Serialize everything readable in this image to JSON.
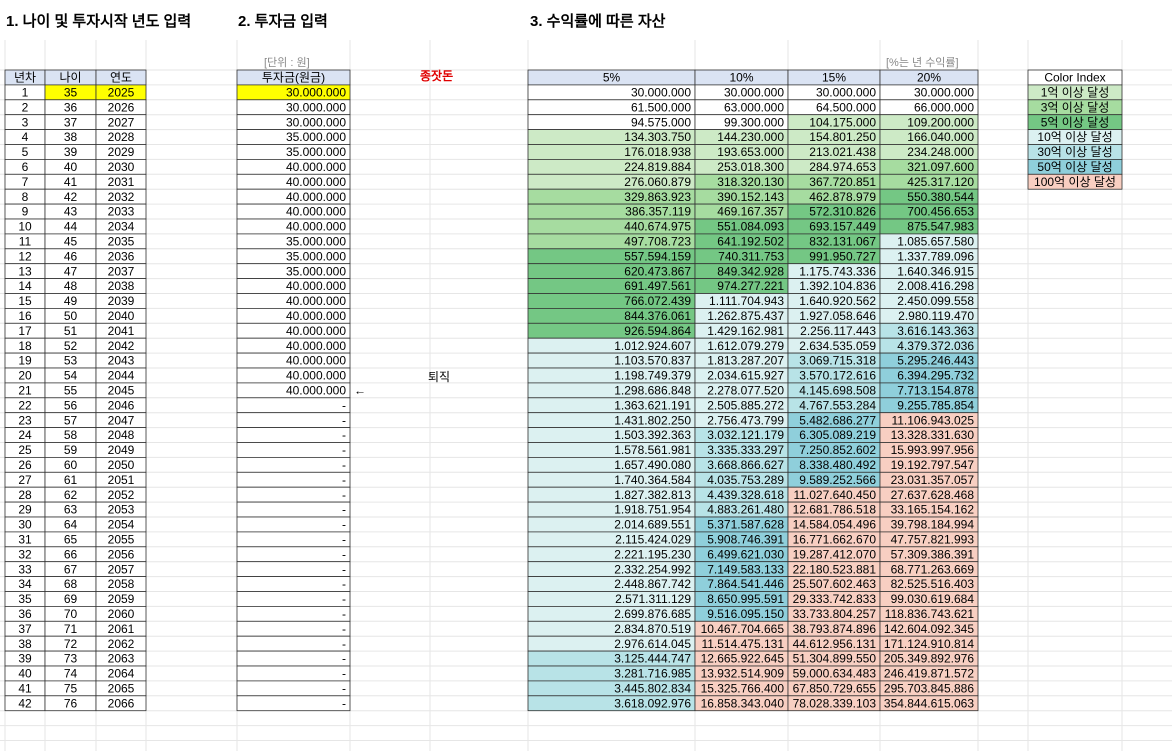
{
  "titles": {
    "section1": "1. 나이 및 투자시작 년도 입력",
    "section2": "2. 투자금 입력",
    "section3": "3. 수익률에 따른 자산"
  },
  "notes": {
    "unit": "[단위 : 원]",
    "rate": "[%는 년 수익률]",
    "seed": "종잣돈",
    "retire": "퇴직",
    "arrow": "←"
  },
  "age_table": {
    "headers": [
      "년차",
      "나이",
      "연도"
    ],
    "rows": [
      [
        1,
        35,
        2025
      ],
      [
        2,
        36,
        2026
      ],
      [
        3,
        37,
        2027
      ],
      [
        4,
        38,
        2028
      ],
      [
        5,
        39,
        2029
      ],
      [
        6,
        40,
        2030
      ],
      [
        7,
        41,
        2031
      ],
      [
        8,
        42,
        2032
      ],
      [
        9,
        43,
        2033
      ],
      [
        10,
        44,
        2034
      ],
      [
        11,
        45,
        2035
      ],
      [
        12,
        46,
        2036
      ],
      [
        13,
        47,
        2037
      ],
      [
        14,
        48,
        2038
      ],
      [
        15,
        49,
        2039
      ],
      [
        16,
        50,
        2040
      ],
      [
        17,
        51,
        2041
      ],
      [
        18,
        52,
        2042
      ],
      [
        19,
        53,
        2043
      ],
      [
        20,
        54,
        2044
      ],
      [
        21,
        55,
        2045
      ],
      [
        22,
        56,
        2046
      ],
      [
        23,
        57,
        2047
      ],
      [
        24,
        58,
        2048
      ],
      [
        25,
        59,
        2049
      ],
      [
        26,
        60,
        2050
      ],
      [
        27,
        61,
        2051
      ],
      [
        28,
        62,
        2052
      ],
      [
        29,
        63,
        2053
      ],
      [
        30,
        64,
        2054
      ],
      [
        31,
        65,
        2055
      ],
      [
        32,
        66,
        2056
      ],
      [
        33,
        67,
        2057
      ],
      [
        34,
        68,
        2058
      ],
      [
        35,
        69,
        2059
      ],
      [
        36,
        70,
        2060
      ],
      [
        37,
        71,
        2061
      ],
      [
        38,
        72,
        2062
      ],
      [
        39,
        73,
        2063
      ],
      [
        40,
        74,
        2064
      ],
      [
        41,
        75,
        2065
      ],
      [
        42,
        76,
        2066
      ]
    ]
  },
  "investment_table": {
    "header": "투자금(원금)",
    "rows": [
      "30.000.000",
      "30.000.000",
      "30.000.000",
      "35.000.000",
      "35.000.000",
      "40.000.000",
      "40.000.000",
      "40.000.000",
      "40.000.000",
      "40.000.000",
      "35.000.000",
      "35.000.000",
      "35.000.000",
      "40.000.000",
      "40.000.000",
      "40.000.000",
      "40.000.000",
      "40.000.000",
      "40.000.000",
      "40.000.000",
      "40.000.000",
      "-",
      "-",
      "-",
      "-",
      "-",
      "-",
      "-",
      "-",
      "-",
      "-",
      "-",
      "-",
      "-",
      "-",
      "-",
      "-",
      "-",
      "-",
      "-",
      "-",
      "-"
    ]
  },
  "asset_table": {
    "headers": [
      "5%",
      "10%",
      "15%",
      "20%"
    ],
    "rows": [
      [
        "30.000.000",
        "30.000.000",
        "30.000.000",
        "30.000.000"
      ],
      [
        "61.500.000",
        "63.000.000",
        "64.500.000",
        "66.000.000"
      ],
      [
        "94.575.000",
        "99.300.000",
        "104.175.000",
        "109.200.000"
      ],
      [
        "134.303.750",
        "144.230.000",
        "154.801.250",
        "166.040.000"
      ],
      [
        "176.018.938",
        "193.653.000",
        "213.021.438",
        "234.248.000"
      ],
      [
        "224.819.884",
        "253.018.300",
        "284.974.653",
        "321.097.600"
      ],
      [
        "276.060.879",
        "318.320.130",
        "367.720.851",
        "425.317.120"
      ],
      [
        "329.863.923",
        "390.152.143",
        "462.878.979",
        "550.380.544"
      ],
      [
        "386.357.119",
        "469.167.357",
        "572.310.826",
        "700.456.653"
      ],
      [
        "440.674.975",
        "551.084.093",
        "693.157.449",
        "875.547.983"
      ],
      [
        "497.708.723",
        "641.192.502",
        "832.131.067",
        "1.085.657.580"
      ],
      [
        "557.594.159",
        "740.311.753",
        "991.950.727",
        "1.337.789.096"
      ],
      [
        "620.473.867",
        "849.342.928",
        "1.175.743.336",
        "1.640.346.915"
      ],
      [
        "691.497.561",
        "974.277.221",
        "1.392.104.836",
        "2.008.416.298"
      ],
      [
        "766.072.439",
        "1.111.704.943",
        "1.640.920.562",
        "2.450.099.558"
      ],
      [
        "844.376.061",
        "1.262.875.437",
        "1.927.058.646",
        "2.980.119.470"
      ],
      [
        "926.594.864",
        "1.429.162.981",
        "2.256.117.443",
        "3.616.143.363"
      ],
      [
        "1.012.924.607",
        "1.612.079.279",
        "2.634.535.059",
        "4.379.372.036"
      ],
      [
        "1.103.570.837",
        "1.813.287.207",
        "3.069.715.318",
        "5.295.246.443"
      ],
      [
        "1.198.749.379",
        "2.034.615.927",
        "3.570.172.616",
        "6.394.295.732"
      ],
      [
        "1.298.686.848",
        "2.278.077.520",
        "4.145.698.508",
        "7.713.154.878"
      ],
      [
        "1.363.621.191",
        "2.505.885.272",
        "4.767.553.284",
        "9.255.785.854"
      ],
      [
        "1.431.802.250",
        "2.756.473.799",
        "5.482.686.277",
        "11.106.943.025"
      ],
      [
        "1.503.392.363",
        "3.032.121.179",
        "6.305.089.219",
        "13.328.331.630"
      ],
      [
        "1.578.561.981",
        "3.335.333.297",
        "7.250.852.602",
        "15.993.997.956"
      ],
      [
        "1.657.490.080",
        "3.668.866.627",
        "8.338.480.492",
        "19.192.797.547"
      ],
      [
        "1.740.364.584",
        "4.035.753.289",
        "9.589.252.566",
        "23.031.357.057"
      ],
      [
        "1.827.382.813",
        "4.439.328.618",
        "11.027.640.450",
        "27.637.628.468"
      ],
      [
        "1.918.751.954",
        "4.883.261.480",
        "12.681.786.518",
        "33.165.154.162"
      ],
      [
        "2.014.689.551",
        "5.371.587.628",
        "14.584.054.496",
        "39.798.184.994"
      ],
      [
        "2.115.424.029",
        "5.908.746.391",
        "16.771.662.670",
        "47.757.821.993"
      ],
      [
        "2.221.195.230",
        "6.499.621.030",
        "19.287.412.070",
        "57.309.386.391"
      ],
      [
        "2.332.254.992",
        "7.149.583.133",
        "22.180.523.881",
        "68.771.263.669"
      ],
      [
        "2.448.867.742",
        "7.864.541.446",
        "25.507.602.463",
        "82.525.516.403"
      ],
      [
        "2.571.311.129",
        "8.650.995.591",
        "29.333.742.833",
        "99.030.619.684"
      ],
      [
        "2.699.876.685",
        "9.516.095.150",
        "33.733.804.257",
        "118.836.743.621"
      ],
      [
        "2.834.870.519",
        "10.467.704.665",
        "38.793.874.896",
        "142.604.092.345"
      ],
      [
        "2.976.614.045",
        "11.514.475.131",
        "44.612.956.131",
        "171.124.910.814"
      ],
      [
        "3.125.444.747",
        "12.665.922.645",
        "51.304.899.550",
        "205.349.892.976"
      ],
      [
        "3.281.716.985",
        "13.932.514.909",
        "59.000.634.483",
        "246.419.871.572"
      ],
      [
        "3.445.802.834",
        "15.325.766.400",
        "67.850.729.655",
        "295.703.845.886"
      ],
      [
        "3.618.092.976",
        "16.858.343.040",
        "78.028.339.103",
        "354.844.615.063"
      ]
    ]
  },
  "color_index": {
    "title": "Color Index",
    "items": [
      {
        "label": "1억 이상 달성",
        "color": "#cdeac6"
      },
      {
        "label": "3억 이상 달성",
        "color": "#a6dca0"
      },
      {
        "label": "5억 이상 달성",
        "color": "#74c784"
      },
      {
        "label": "10억 이상 달성",
        "color": "#dcf1f1"
      },
      {
        "label": "30억 이상 달성",
        "color": "#b8e3e7"
      },
      {
        "label": "50억 이상 달성",
        "color": "#8fcfdb"
      },
      {
        "label": "100억 이상 달성",
        "color": "#f8cfc2"
      }
    ]
  }
}
